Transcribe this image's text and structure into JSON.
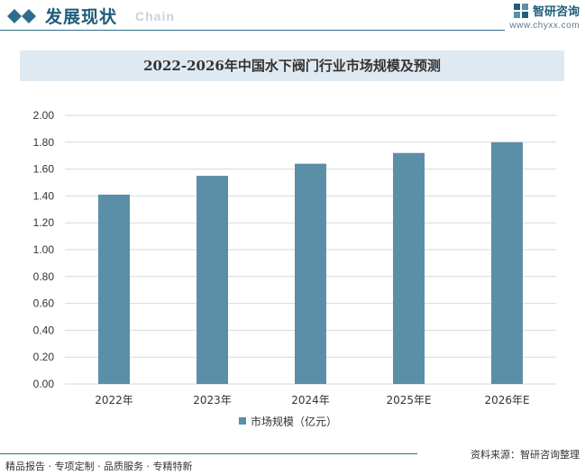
{
  "header": {
    "section_title": "发展现状",
    "section_subtitle": "Chain",
    "brand_name": "智研咨询",
    "brand_url": "www.chyxx.com"
  },
  "footer": {
    "left_text": "精品报告 · 专项定制 · 品质服务 · 专精特新",
    "source_text": "资料来源：智研咨询整理"
  },
  "colors": {
    "bar": "#5b8fa8",
    "accent": "#1f5d7a",
    "title_band": "#dfe9f2"
  },
  "chart_data": {
    "type": "bar",
    "title": "2022-2026年中国水下阀门行业市场规模及预测",
    "categories": [
      "2022年",
      "2023年",
      "2024年",
      "2025年E",
      "2026年E"
    ],
    "series": [
      {
        "name": "市场规模（亿元）",
        "values": [
          1.41,
          1.55,
          1.64,
          1.72,
          1.8
        ]
      }
    ],
    "yticks": [
      "0.00",
      "0.20",
      "0.40",
      "0.60",
      "0.80",
      "1.00",
      "1.20",
      "1.40",
      "1.60",
      "1.80",
      "2.00"
    ],
    "ylim": [
      0,
      2.0
    ],
    "grid": true,
    "legend_position": "bottom"
  }
}
